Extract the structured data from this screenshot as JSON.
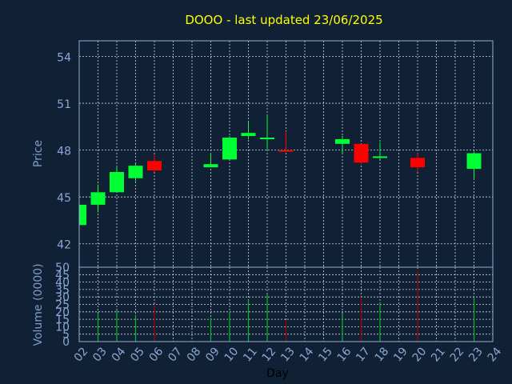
{
  "colors": {
    "background": "#102035",
    "panel_border": "#8fb0d8",
    "grid": "#cfd8e6",
    "title": "#ffff00",
    "label": "#7f9cc8",
    "tick": "#8aa8d8",
    "xlabel": "#000000",
    "up": "#00ff33",
    "down": "#ff0000",
    "up_volume": "#00c020",
    "down_volume": "#b00000"
  },
  "chart_data": [
    {
      "type": "candlestick",
      "title": "DOOO - last updated 23/06/2025",
      "ylabel": "Price",
      "xlim": [
        2,
        24
      ],
      "ylim": [
        40.5,
        55
      ],
      "yticks": [
        42,
        45,
        48,
        51,
        54
      ],
      "grid": true,
      "candles": [
        {
          "day": 2,
          "open": 43.2,
          "high": 44.6,
          "low": 43.2,
          "close": 44.5
        },
        {
          "day": 3,
          "open": 44.5,
          "high": 45.8,
          "low": 44.0,
          "close": 45.3
        },
        {
          "day": 4,
          "open": 45.3,
          "high": 47.0,
          "low": 45.3,
          "close": 46.6
        },
        {
          "day": 5,
          "open": 46.2,
          "high": 47.1,
          "low": 46.0,
          "close": 47.0
        },
        {
          "day": 6,
          "open": 47.3,
          "high": 47.7,
          "low": 46.6,
          "close": 46.7
        },
        {
          "day": 9,
          "open": 46.9,
          "high": 47.8,
          "low": 46.9,
          "close": 47.1
        },
        {
          "day": 10,
          "open": 47.4,
          "high": 48.9,
          "low": 47.4,
          "close": 48.8
        },
        {
          "day": 11,
          "open": 48.9,
          "high": 49.8,
          "low": 48.7,
          "close": 49.1
        },
        {
          "day": 12,
          "open": 48.7,
          "high": 50.3,
          "low": 48.0,
          "close": 48.8
        },
        {
          "day": 13,
          "open": 48.0,
          "high": 49.2,
          "low": 47.9,
          "close": 47.9
        },
        {
          "day": 16,
          "open": 48.4,
          "high": 48.9,
          "low": 47.8,
          "close": 48.7
        },
        {
          "day": 17,
          "open": 48.4,
          "high": 48.4,
          "low": 47.1,
          "close": 47.2
        },
        {
          "day": 18,
          "open": 47.5,
          "high": 48.5,
          "low": 47.4,
          "close": 47.6
        },
        {
          "day": 20,
          "open": 47.5,
          "high": 47.8,
          "low": 46.6,
          "close": 46.9
        },
        {
          "day": 23,
          "open": 46.8,
          "high": 47.9,
          "low": 46.1,
          "close": 47.8
        }
      ]
    },
    {
      "type": "bar",
      "ylabel": "Volume (0000)",
      "xlabel": "Day",
      "xlim": [
        2,
        24
      ],
      "ylim": [
        0,
        50
      ],
      "yticks": [
        0,
        5,
        10,
        15,
        20,
        25,
        30,
        35,
        40,
        45,
        50
      ],
      "xticks": [
        "02",
        "03",
        "04",
        "05",
        "06",
        "07",
        "08",
        "09",
        "10",
        "11",
        "12",
        "13",
        "14",
        "15",
        "16",
        "17",
        "18",
        "19",
        "20",
        "21",
        "22",
        "23",
        "24"
      ],
      "grid": true,
      "bars": [
        {
          "day": 3,
          "value": 19,
          "direction": "up"
        },
        {
          "day": 4,
          "value": 21,
          "direction": "up"
        },
        {
          "day": 5,
          "value": 18,
          "direction": "up"
        },
        {
          "day": 6,
          "value": 24,
          "direction": "down"
        },
        {
          "day": 9,
          "value": 16,
          "direction": "up"
        },
        {
          "day": 10,
          "value": 20,
          "direction": "up"
        },
        {
          "day": 11,
          "value": 28,
          "direction": "up"
        },
        {
          "day": 12,
          "value": 32,
          "direction": "up"
        },
        {
          "day": 13,
          "value": 14,
          "direction": "down"
        },
        {
          "day": 16,
          "value": 19,
          "direction": "up"
        },
        {
          "day": 17,
          "value": 30,
          "direction": "down"
        },
        {
          "day": 18,
          "value": 26,
          "direction": "up"
        },
        {
          "day": 20,
          "value": 48,
          "direction": "down"
        },
        {
          "day": 23,
          "value": 30,
          "direction": "up"
        }
      ]
    }
  ]
}
